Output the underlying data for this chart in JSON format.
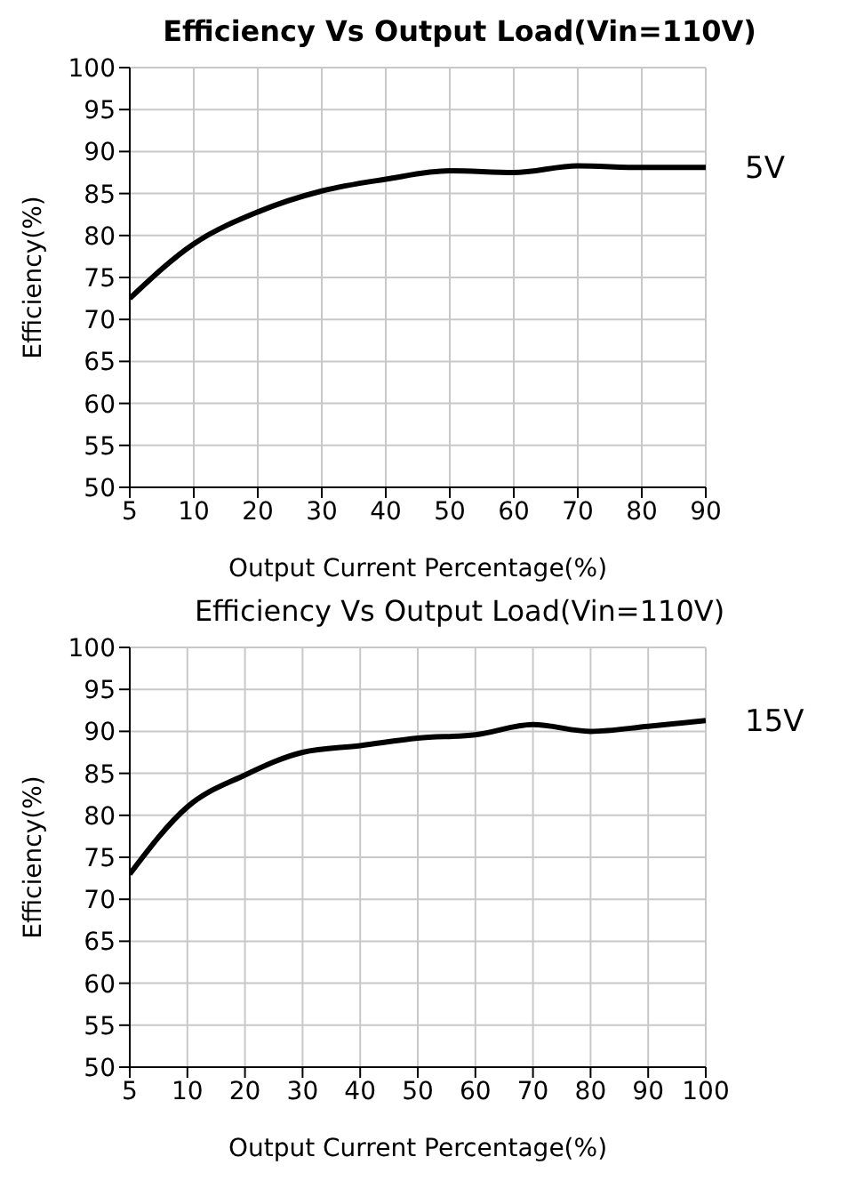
{
  "chart_data": [
    {
      "type": "line",
      "title": "Efficiency Vs Output Load(Vin=110V)",
      "xlabel": "Output Current Percentage(%)",
      "ylabel": "Efficiency(%)",
      "categories": [
        "5",
        "10",
        "20",
        "30",
        "40",
        "50",
        "60",
        "70",
        "80",
        "90"
      ],
      "series": [
        {
          "name": "5V",
          "color": "#000000",
          "values": [
            72.5,
            79,
            82.8,
            85.3,
            86.7,
            87.7,
            87.5,
            88.3,
            88.1,
            88.1
          ]
        }
      ],
      "ylim": [
        50,
        100
      ],
      "yticks": [
        50,
        55,
        60,
        65,
        70,
        75,
        80,
        85,
        90,
        95,
        100
      ],
      "grid": true,
      "legend": false,
      "marker": "none",
      "line_style": "solid"
    },
    {
      "type": "line",
      "title": "Efficiency Vs Output Load(Vin=110V)",
      "xlabel": "Output Current Percentage(%)",
      "ylabel": "Efficiency(%)",
      "categories": [
        "5",
        "10",
        "20",
        "30",
        "40",
        "50",
        "60",
        "70",
        "80",
        "90",
        "100"
      ],
      "series": [
        {
          "name": "15V",
          "color": "#000000",
          "values": [
            73,
            81,
            84.8,
            87.5,
            88.3,
            89.2,
            89.6,
            90.8,
            90,
            90.6,
            91.3
          ]
        }
      ],
      "ylim": [
        50,
        100
      ],
      "yticks": [
        50,
        55,
        60,
        65,
        70,
        75,
        80,
        85,
        90,
        95,
        100
      ],
      "grid": true,
      "legend": false,
      "marker": "none",
      "line_style": "solid"
    }
  ]
}
